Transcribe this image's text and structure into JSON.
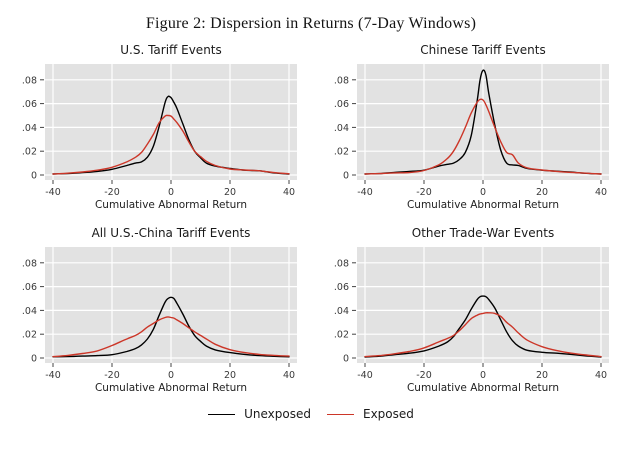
{
  "figure_title": "Figure 2: Dispersion in Returns (7-Day Windows)",
  "colors": {
    "unexposed": "#000000",
    "exposed": "#cc3628",
    "plot_bg": "#e2e2e2",
    "grid": "#ffffff",
    "tick": "#444444",
    "tick_label": "#3a3a3a"
  },
  "legend": {
    "items": [
      {
        "label": "Unexposed",
        "color": "#000000"
      },
      {
        "label": "Exposed",
        "color": "#cc3628"
      }
    ]
  },
  "axis": {
    "xlabel": "Cumulative Abnormal Return",
    "x_ticks": [
      {
        "label": "-40",
        "value": -40
      },
      {
        "label": "-20",
        "value": -20
      },
      {
        "label": "0",
        "value": 0
      },
      {
        "label": "20",
        "value": 20
      },
      {
        "label": "40",
        "value": 40
      }
    ],
    "y_ticks": [
      {
        "label": "0",
        "value": 0
      },
      {
        "label": ".02",
        "value": 0.02
      },
      {
        "label": ".04",
        "value": 0.04
      },
      {
        "label": ".06",
        "value": 0.06
      },
      {
        "label": ".08",
        "value": 0.08
      }
    ]
  },
  "chart_data": [
    {
      "type": "line",
      "title": "U.S. Tariff Events",
      "xlabel": "Cumulative Abnormal Return",
      "xlim": [
        -40,
        40
      ],
      "ylim": [
        0,
        0.08
      ],
      "grid": true,
      "x": [
        -40,
        -35,
        -30,
        -25,
        -20,
        -15,
        -12,
        -10,
        -8,
        -6,
        -4,
        -2,
        -1,
        0,
        1,
        2,
        4,
        6,
        8,
        10,
        12,
        15,
        20,
        25,
        30,
        35,
        40
      ],
      "series": [
        {
          "name": "Unexposed",
          "color": "#000000",
          "values": [
            0.0008,
            0.0012,
            0.002,
            0.003,
            0.0048,
            0.008,
            0.01,
            0.011,
            0.015,
            0.024,
            0.041,
            0.061,
            0.066,
            0.065,
            0.061,
            0.056,
            0.043,
            0.03,
            0.02,
            0.0145,
            0.01,
            0.0075,
            0.0055,
            0.004,
            0.0035,
            0.0018,
            0.0008
          ]
        },
        {
          "name": "Exposed",
          "color": "#cc3628",
          "values": [
            0.0008,
            0.0015,
            0.0025,
            0.004,
            0.0065,
            0.011,
            0.015,
            0.019,
            0.026,
            0.034,
            0.044,
            0.0495,
            0.05,
            0.0495,
            0.047,
            0.044,
            0.037,
            0.028,
            0.02,
            0.0155,
            0.0115,
            0.008,
            0.005,
            0.0042,
            0.0035,
            0.002,
            0.001
          ]
        }
      ]
    },
    {
      "type": "line",
      "title": "Chinese Tariff Events",
      "xlabel": "Cumulative Abnormal Return",
      "xlim": [
        -40,
        40
      ],
      "ylim": [
        0,
        0.08
      ],
      "grid": true,
      "x": [
        -40,
        -35,
        -30,
        -25,
        -20,
        -15,
        -12,
        -10,
        -8,
        -6,
        -4,
        -2,
        -1,
        0,
        1,
        2,
        4,
        6,
        8,
        10,
        12,
        15,
        20,
        25,
        30,
        35,
        40
      ],
      "series": [
        {
          "name": "Unexposed",
          "color": "#000000",
          "values": [
            0.0008,
            0.0012,
            0.0022,
            0.003,
            0.004,
            0.0075,
            0.009,
            0.01,
            0.013,
            0.019,
            0.033,
            0.062,
            0.08,
            0.088,
            0.084,
            0.068,
            0.042,
            0.021,
            0.01,
            0.0085,
            0.008,
            0.0055,
            0.004,
            0.0032,
            0.0024,
            0.0014,
            0.0008
          ]
        },
        {
          "name": "Exposed",
          "color": "#cc3628",
          "values": [
            0.0008,
            0.0012,
            0.0018,
            0.002,
            0.0038,
            0.0085,
            0.014,
            0.02,
            0.029,
            0.04,
            0.052,
            0.061,
            0.0635,
            0.063,
            0.059,
            0.053,
            0.04,
            0.028,
            0.019,
            0.017,
            0.01,
            0.006,
            0.0042,
            0.003,
            0.0022,
            0.0015,
            0.0008
          ]
        }
      ]
    },
    {
      "type": "line",
      "title": "All U.S.-China Tariff Events",
      "xlabel": "Cumulative Abnormal Return",
      "xlim": [
        -40,
        40
      ],
      "ylim": [
        0,
        0.08
      ],
      "grid": true,
      "x": [
        -40,
        -35,
        -30,
        -25,
        -20,
        -15,
        -12,
        -10,
        -8,
        -6,
        -4,
        -2,
        -1,
        0,
        1,
        2,
        4,
        6,
        8,
        10,
        12,
        15,
        20,
        25,
        30,
        35,
        40
      ],
      "series": [
        {
          "name": "Unexposed",
          "color": "#000000",
          "values": [
            0.001,
            0.0012,
            0.0016,
            0.002,
            0.0028,
            0.0055,
            0.008,
            0.011,
            0.016,
            0.024,
            0.036,
            0.047,
            0.05,
            0.051,
            0.05,
            0.046,
            0.037,
            0.027,
            0.019,
            0.014,
            0.01,
            0.0068,
            0.0045,
            0.003,
            0.002,
            0.0014,
            0.001
          ]
        },
        {
          "name": "Exposed",
          "color": "#cc3628",
          "values": [
            0.0012,
            0.0022,
            0.0038,
            0.006,
            0.0105,
            0.016,
            0.019,
            0.022,
            0.026,
            0.029,
            0.032,
            0.034,
            0.0345,
            0.034,
            0.0335,
            0.032,
            0.029,
            0.0255,
            0.022,
            0.019,
            0.016,
            0.0115,
            0.007,
            0.0045,
            0.003,
            0.0022,
            0.0016
          ]
        }
      ]
    },
    {
      "type": "line",
      "title": "Other Trade-War Events",
      "xlabel": "Cumulative Abnormal Return",
      "xlim": [
        -40,
        40
      ],
      "ylim": [
        0,
        0.08
      ],
      "grid": true,
      "x": [
        -40,
        -35,
        -30,
        -25,
        -20,
        -15,
        -12,
        -10,
        -8,
        -6,
        -4,
        -2,
        -1,
        0,
        1,
        2,
        4,
        6,
        8,
        10,
        12,
        15,
        20,
        25,
        30,
        35,
        40
      ],
      "series": [
        {
          "name": "Unexposed",
          "color": "#000000",
          "values": [
            0.0008,
            0.0015,
            0.0028,
            0.004,
            0.006,
            0.01,
            0.0135,
            0.018,
            0.025,
            0.032,
            0.041,
            0.049,
            0.0515,
            0.052,
            0.0515,
            0.049,
            0.042,
            0.032,
            0.022,
            0.0145,
            0.01,
            0.0065,
            0.0048,
            0.004,
            0.003,
            0.0018,
            0.0008
          ]
        },
        {
          "name": "Exposed",
          "color": "#cc3628",
          "values": [
            0.0012,
            0.002,
            0.0035,
            0.0055,
            0.0085,
            0.0135,
            0.0165,
            0.019,
            0.023,
            0.028,
            0.033,
            0.036,
            0.037,
            0.0375,
            0.038,
            0.038,
            0.0375,
            0.035,
            0.03,
            0.026,
            0.021,
            0.015,
            0.0095,
            0.0062,
            0.004,
            0.0025,
            0.0012
          ]
        }
      ]
    }
  ]
}
